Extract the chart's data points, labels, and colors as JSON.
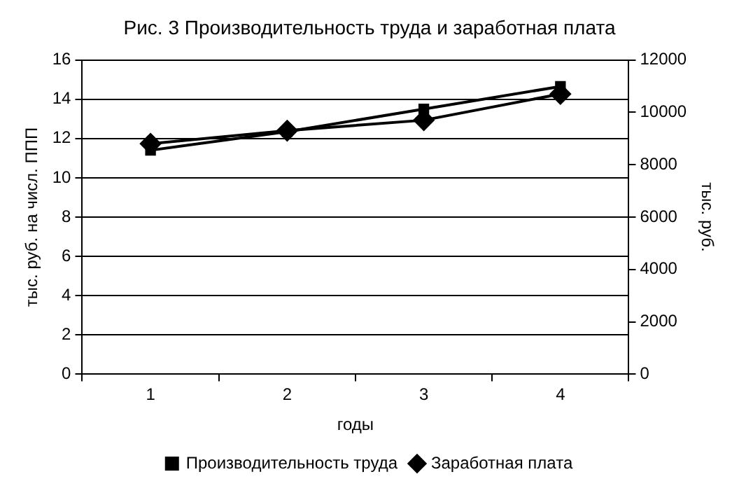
{
  "chart_data": {
    "type": "line",
    "title": "Рис. 3 Производительность труда и заработная плата",
    "xlabel": "годы",
    "ylabel": "тыс. руб. на числ. ППП",
    "y2label": "тыс. руб.",
    "categories": [
      "1",
      "2",
      "3",
      "4"
    ],
    "series": [
      {
        "name": "Производительность труда",
        "color": "#000000",
        "values": [
          11.4,
          12.35,
          13.5,
          14.65
        ],
        "marker": "square"
      },
      {
        "name": "Заработная плата",
        "color": "#000000",
        "values": [
          8800,
          9300,
          9700,
          10700
        ],
        "axis": "y2",
        "marker": "diamond"
      }
    ],
    "ylim": [
      0,
      16
    ],
    "yticks": [
      0,
      2,
      4,
      6,
      8,
      10,
      12,
      14,
      16
    ],
    "y2lim": [
      0,
      12000
    ],
    "y2ticks": [
      0,
      2000,
      4000,
      6000,
      8000,
      10000,
      12000
    ],
    "grid": "y",
    "legend": "bottom",
    "line_style": "solid"
  }
}
